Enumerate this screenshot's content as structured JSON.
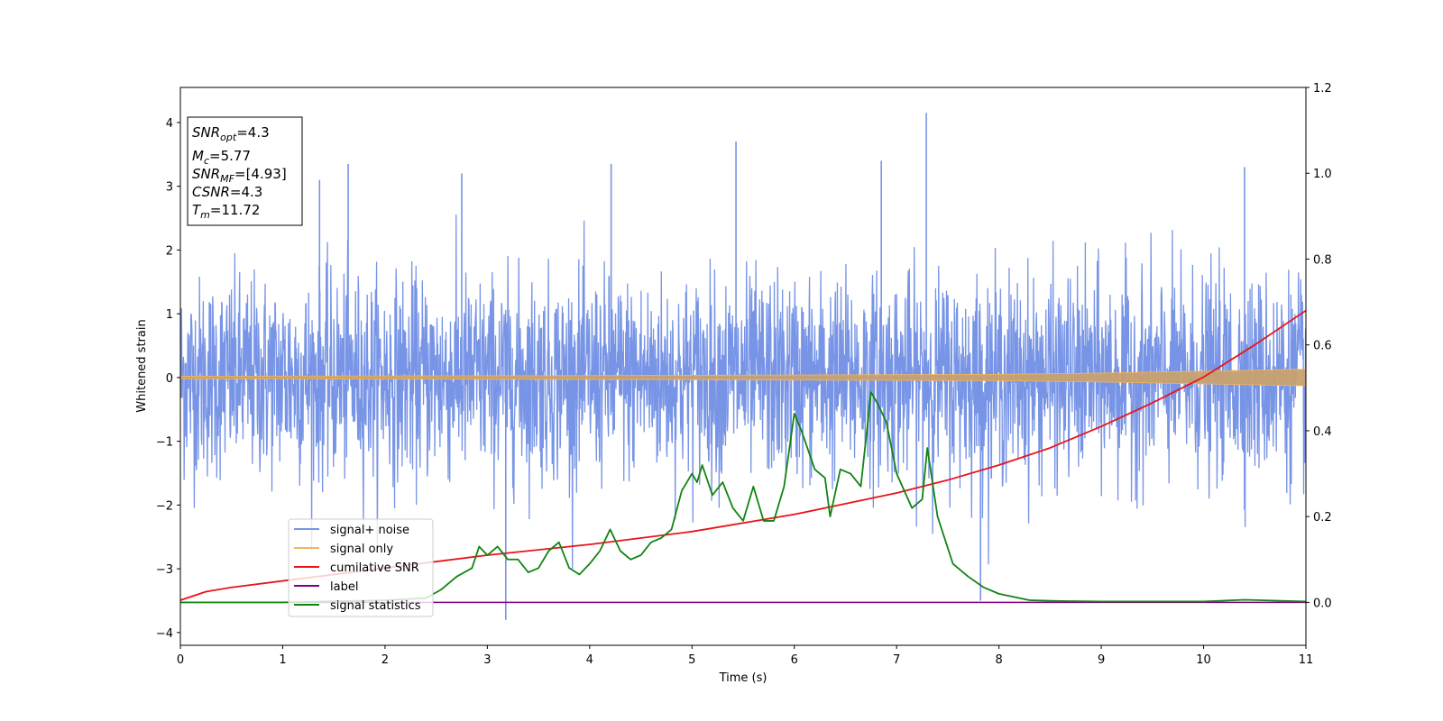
{
  "chart_data": {
    "type": "line",
    "xlabel": "Time (s)",
    "ylabel": "Whitened strain",
    "xlim": [
      0,
      11
    ],
    "ylim": [
      -4.2,
      4.55
    ],
    "y2lim": [
      -0.1,
      1.2
    ],
    "xticks": [
      "0",
      "1",
      "2",
      "3",
      "4",
      "5",
      "6",
      "7",
      "8",
      "9",
      "10",
      "11"
    ],
    "yticks": [
      "−4",
      "−3",
      "−2",
      "−1",
      "0",
      "1",
      "2",
      "3",
      "4"
    ],
    "y2ticks": [
      "0.0",
      "0.2",
      "0.4",
      "0.6",
      "0.8",
      "1.0",
      "1.2"
    ],
    "legend_position": "lower-left",
    "info_box": {
      "line1": {
        "base": "SNR",
        "sub": "opt",
        "value": "=4.3"
      },
      "line2": {
        "base": "M",
        "sub": "c",
        "value": "=5.77"
      },
      "line3": {
        "base": "SNR",
        "sub": "MF",
        "value": "=[4.93]"
      },
      "line4": {
        "base": "CSNR",
        "value": "=4.3"
      },
      "line5": {
        "base": "T",
        "sub": "m",
        "value": "=11.72"
      }
    },
    "series": [
      {
        "name": "signal+ noise",
        "color": "#7794e6",
        "axis": "left",
        "description_points": {
          "x": [
            0,
            1.36,
            1.64,
            2.75,
            3.18,
            4.21,
            5.43,
            6.85,
            7.29,
            7.82,
            10.4
          ],
          "y": [
            0,
            3.1,
            3.35,
            3.2,
            -3.8,
            3.35,
            3.7,
            3.4,
            4.15,
            -3.5,
            3.3
          ]
        },
        "envelope": {
          "typical_upper": 1.5,
          "typical_lower": -1.5,
          "peak_upper": 4.15,
          "peak_lower": -3.8
        }
      },
      {
        "name": "signal only",
        "color": "#f5b55c",
        "axis": "left",
        "amplitude": {
          "x": [
            0,
            2,
            4,
            6,
            8,
            9,
            10,
            11
          ],
          "y": [
            0.02,
            0.025,
            0.03,
            0.04,
            0.05,
            0.07,
            0.1,
            0.13
          ]
        }
      },
      {
        "name": "cumilative SNR",
        "color": "#e8141b",
        "axis": "right",
        "x": [
          0,
          0.25,
          0.5,
          1,
          1.5,
          2,
          3,
          4,
          5,
          6,
          7,
          7.5,
          8,
          8.5,
          9,
          9.5,
          10,
          10.5,
          11
        ],
        "y": [
          0.005,
          0.025,
          0.035,
          0.05,
          0.065,
          0.08,
          0.11,
          0.135,
          0.165,
          0.205,
          0.255,
          0.285,
          0.32,
          0.36,
          0.41,
          0.465,
          0.525,
          0.6,
          0.68
        ]
      },
      {
        "name": "label",
        "color": "#800080",
        "axis": "right",
        "x": [
          0,
          11
        ],
        "y": [
          0,
          0
        ]
      },
      {
        "name": "signal statistics",
        "color": "#138313",
        "axis": "right",
        "x": [
          0,
          1,
          2,
          2.4,
          2.55,
          2.7,
          2.85,
          2.92,
          3.0,
          3.1,
          3.2,
          3.3,
          3.4,
          3.5,
          3.6,
          3.7,
          3.8,
          3.9,
          4.0,
          4.1,
          4.2,
          4.3,
          4.4,
          4.5,
          4.6,
          4.7,
          4.8,
          4.9,
          5.0,
          5.05,
          5.1,
          5.2,
          5.3,
          5.4,
          5.5,
          5.6,
          5.7,
          5.8,
          5.9,
          6.0,
          6.07,
          6.2,
          6.3,
          6.35,
          6.45,
          6.55,
          6.65,
          6.75,
          6.82,
          6.9,
          7.0,
          7.15,
          7.25,
          7.3,
          7.4,
          7.55,
          7.7,
          7.85,
          8.0,
          8.3,
          8.6,
          9,
          10,
          10.4,
          11
        ],
        "y": [
          0.0,
          0.0,
          0.005,
          0.01,
          0.03,
          0.06,
          0.08,
          0.13,
          0.11,
          0.13,
          0.1,
          0.1,
          0.07,
          0.08,
          0.12,
          0.14,
          0.08,
          0.065,
          0.09,
          0.12,
          0.17,
          0.12,
          0.1,
          0.11,
          0.14,
          0.15,
          0.17,
          0.26,
          0.3,
          0.28,
          0.32,
          0.25,
          0.28,
          0.22,
          0.19,
          0.27,
          0.19,
          0.19,
          0.27,
          0.44,
          0.4,
          0.31,
          0.29,
          0.2,
          0.31,
          0.3,
          0.27,
          0.49,
          0.46,
          0.42,
          0.3,
          0.22,
          0.24,
          0.36,
          0.2,
          0.09,
          0.06,
          0.035,
          0.02,
          0.005,
          0.003,
          0.002,
          0.002,
          0.006,
          0.002
        ]
      }
    ]
  }
}
